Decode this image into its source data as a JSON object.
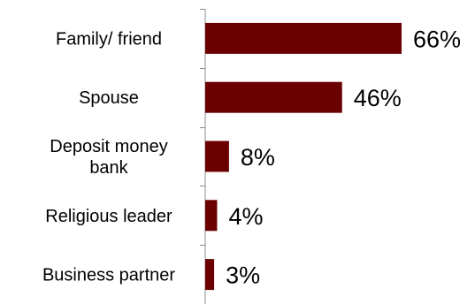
{
  "chart_data": {
    "type": "bar",
    "orientation": "horizontal",
    "categories": [
      "Family/ friend",
      "Spouse",
      "Deposit money bank",
      "Religious leader",
      "Business partner"
    ],
    "category_lines": [
      [
        "Family/ friend"
      ],
      [
        "Spouse"
      ],
      [
        "Deposit money",
        "bank"
      ],
      [
        "Religious leader"
      ],
      [
        "Business partner"
      ]
    ],
    "values": [
      66,
      46,
      8,
      4,
      3
    ],
    "value_labels": [
      "66%",
      "46%",
      "8%",
      "4%",
      "3%"
    ],
    "xlim": [
      0,
      75
    ],
    "grid": false,
    "legend": "none",
    "bar_color": "#6b0000",
    "title": "",
    "xlabel": "",
    "ylabel": ""
  }
}
